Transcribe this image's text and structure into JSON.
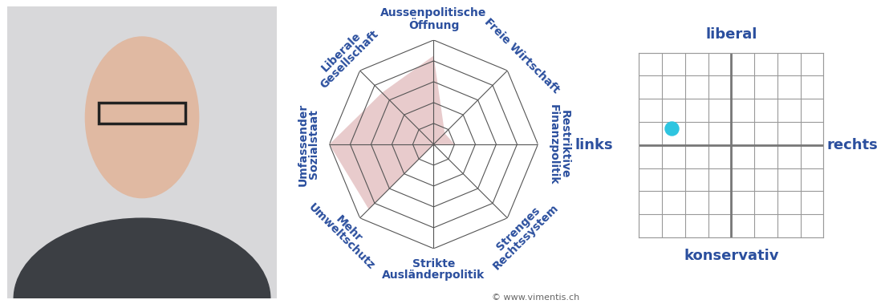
{
  "chart_data": [
    {
      "type": "radar",
      "categories": [
        "Aussenpolitische\nÖffnung",
        "Freie Wirtschaft",
        "Restriktive\nFinanzpolitik",
        "Strenges\nRechtssystem",
        "Strikte\nAusländerpolitik",
        "Mehr\nUmweltschutz",
        "Umfassender\nSozialstaat",
        "Liberale\nGesellschaft"
      ],
      "values": [
        85,
        15,
        20,
        0,
        0,
        88,
        100,
        70
      ],
      "color": "#d9a9ab",
      "ylim": [
        0,
        100
      ],
      "yticks": [
        0,
        20,
        40,
        60,
        80,
        100
      ],
      "grid": true,
      "tick_labels": false,
      "annotation": "© www.vimentis.ch"
    },
    {
      "type": "scatter",
      "x": [
        -65
      ],
      "values": [
        18
      ],
      "color": "#2ec5e0",
      "xlim": [
        -100,
        100
      ],
      "xticks": [
        -100,
        -75,
        -50,
        -25,
        0,
        25,
        50,
        75,
        100
      ],
      "ylim": [
        -100,
        100
      ],
      "yticks": [
        -100,
        -75,
        -50,
        -25,
        0,
        25,
        50,
        75,
        100
      ],
      "grid": true,
      "tick_labels": false,
      "top_label": "liberal",
      "bottom_label": "konservativ",
      "left_label": "links",
      "right_label": "rechts"
    }
  ]
}
